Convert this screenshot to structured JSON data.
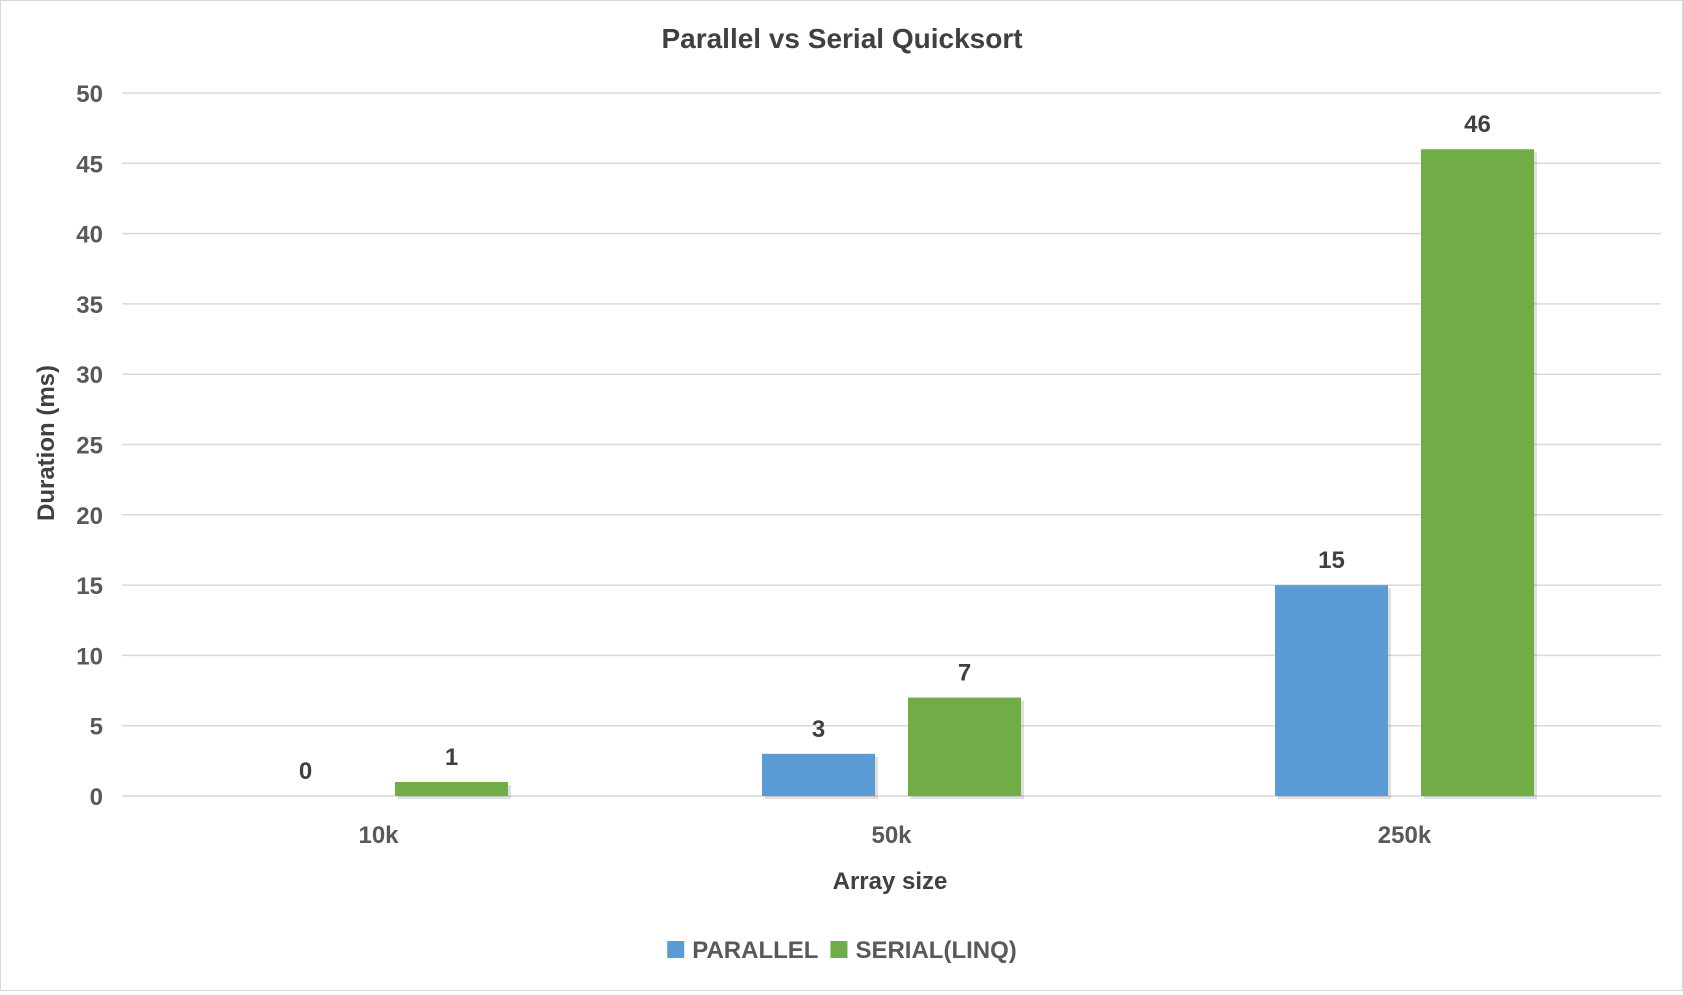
{
  "chart_data": {
    "type": "bar",
    "title": "Parallel vs Serial Quicksort",
    "xlabel": "Array size",
    "ylabel": "Duration (ms)",
    "categories": [
      "10k",
      "50k",
      "250k"
    ],
    "series": [
      {
        "name": "PARALLEL",
        "color": "#5b9bd5",
        "values": [
          0,
          3,
          15
        ]
      },
      {
        "name": "SERIAL(LINQ)",
        "color": "#70ad47",
        "values": [
          1,
          7,
          46
        ]
      }
    ],
    "ylim": [
      0,
      50
    ],
    "yticks": [
      0,
      5,
      10,
      15,
      20,
      25,
      30,
      35,
      40,
      45,
      50
    ],
    "grid": true,
    "legend": "bottom",
    "data_labels": true
  }
}
